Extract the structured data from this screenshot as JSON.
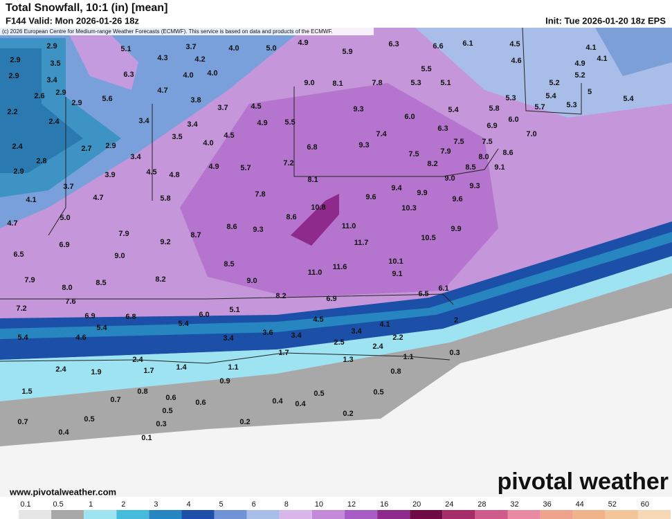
{
  "header": {
    "title": "Total Snowfall, 10:1 (in) [mean]",
    "valid": "F144 Valid: Mon 2026-01-26 18z",
    "init": "Init: Tue 2026-01-20 18z EPS",
    "credit": "(c) 2026 European Centre for Medium-range Weather Forecasts (ECMWF). This service is based on data and products of the ECMWF."
  },
  "footer": {
    "url": "www.pivotalweather.com",
    "logo": "pivotal weather"
  },
  "colorbar": {
    "ticks": [
      0.1,
      0.5,
      1,
      2,
      3,
      4,
      5,
      6,
      8,
      10,
      12,
      16,
      20,
      24,
      28,
      32,
      36,
      44,
      52,
      60
    ],
    "colors": [
      "#e6e6e6",
      "#a8a8a8",
      "#9ee3f2",
      "#46bcdc",
      "#2786bf",
      "#1c4fa8",
      "#6f93d6",
      "#a9bde9",
      "#d9b6ea",
      "#c48ada",
      "#a85cc6",
      "#8d2a8c",
      "#6e0a44",
      "#a52d68",
      "#cf5a8c",
      "#e98aa4",
      "#f0a38c",
      "#f1b48a",
      "#f3c69a",
      "#f6d8b4"
    ]
  },
  "map": {
    "labels": [
      "2.9",
      "5.1",
      "3.7",
      "4.0",
      "5.0",
      "4.9",
      "5.9",
      "6.3",
      "6.6",
      "6.1",
      "4.5",
      "4.1",
      "2.9",
      "3.5",
      "4.3",
      "4.2",
      "4.6",
      "4.9",
      "4.1",
      "2.9",
      "3.4",
      "6.3",
      "4.0",
      "4.0",
      "5.5",
      "5.2",
      "2.6",
      "2.9",
      "4.7",
      "9.0",
      "8.1",
      "7.8",
      "5.3",
      "5.1",
      "5.2",
      "5",
      "5.6",
      "3.8",
      "3.7",
      "4.5",
      "2.9",
      "5.4",
      "5.3",
      "2.2",
      "9.3",
      "6.0",
      "5.4",
      "5.8",
      "5.7",
      "5.3",
      "5.4",
      "2.4",
      "3.4",
      "3.4",
      "4.9",
      "5.5",
      "6.0",
      "3.5",
      "4.5",
      "7.4",
      "6.3",
      "7.0",
      "6.9",
      "2.4",
      "2.7",
      "2.9",
      "4.0",
      "6.8",
      "9.3",
      "7.5",
      "7.5",
      "8.6",
      "2.8",
      "3.4",
      "4.9",
      "5.7",
      "7.2",
      "7.5",
      "7.9",
      "8.0",
      "8.2",
      "8.5",
      "9.1",
      "2.9",
      "3.9",
      "4.5",
      "4.8",
      "8.1",
      "9.0",
      "9.3",
      "3.7",
      "9.4",
      "9.9",
      "9.6",
      "9.6",
      "4.1",
      "4.7",
      "5.8",
      "7.8",
      "10.8",
      "10.3",
      "4.7",
      "5.0",
      "8.6",
      "11.0",
      "8.6",
      "9.3",
      "9.9",
      "7.9",
      "8.7",
      "9.2",
      "10.5",
      "6.9",
      "11.7",
      "6.5",
      "9.0",
      "8.5",
      "10.1",
      "11.6",
      "11.0",
      "9.1",
      "7.9",
      "8.0",
      "8.5",
      "8.2",
      "9.0",
      "6.1",
      "8.2",
      "6.9",
      "6.5",
      "7.2",
      "7.6",
      "5.1",
      "6.0",
      "6.9",
      "6.8",
      "4.5",
      "4.1",
      "2",
      "5.4",
      "5.4",
      "3.6",
      "3.4",
      "3.4",
      "5.4",
      "4.6",
      "3.4",
      "2.5",
      "2.2",
      "2.4",
      "1.7",
      "1.3",
      "1.1",
      "0.3",
      "2.4",
      "2.4",
      "1.9",
      "1.7",
      "1.4",
      "1.1",
      "0.8",
      "0.9",
      "1.5",
      "0.8",
      "0.6",
      "0.5",
      "0.5",
      "0.7",
      "0.6",
      "0.4",
      "0.4",
      "0.7",
      "0.5",
      "0.5",
      "0.3",
      "0.2",
      "0.2",
      "0.4",
      "0.1"
    ]
  }
}
